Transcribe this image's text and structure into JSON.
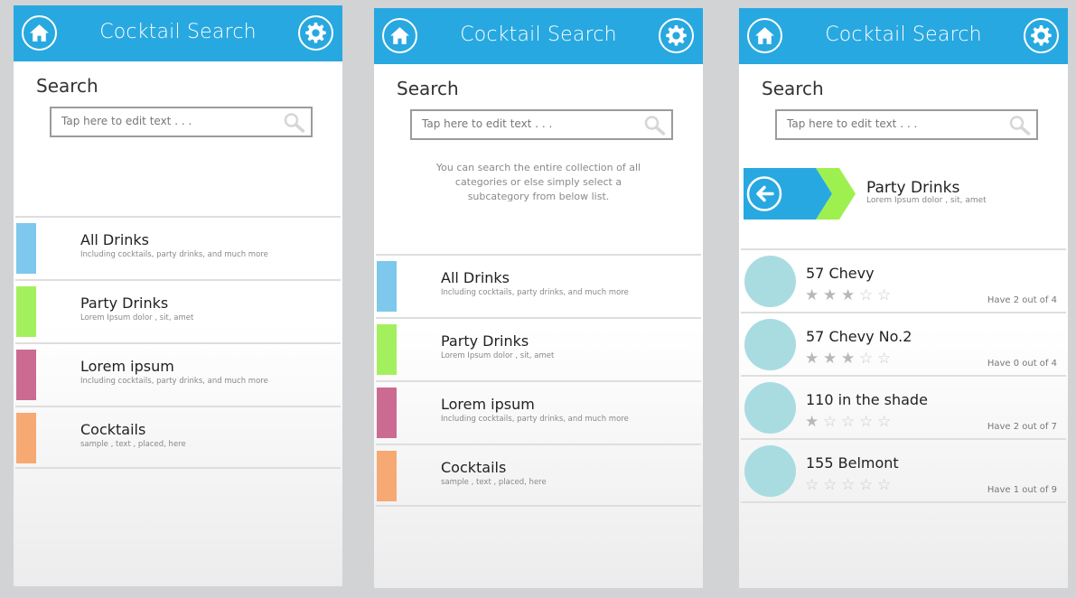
{
  "colors": {
    "bar": "#28a8e0",
    "avatar": "#a9dce1",
    "back_green": "#9ef04f"
  },
  "screens": [
    {
      "title": "Cocktail Search",
      "search_label": "Search",
      "search_placeholder": "Tap here to edit text  . . .",
      "categories": [
        {
          "title": "All Drinks",
          "subtitle": "Including cocktails, party drinks, and much more",
          "color": "#7dc8ec"
        },
        {
          "title": "Party Drinks",
          "subtitle": "Lorem Ipsum dolor , sit, amet",
          "color": "#a3f05f"
        },
        {
          "title": "Lorem ipsum",
          "subtitle": "Including cocktails, party drinks, and much more",
          "color": "#cc6b92"
        },
        {
          "title": "Cocktails",
          "subtitle": "sample , text , placed, here",
          "color": "#f7a974"
        }
      ]
    },
    {
      "title": "Cocktail Search",
      "search_label": "Search",
      "search_placeholder": "Tap here to edit text  . . .",
      "info": "You can search the entire collection of all categories or else simply select a subcategory from below list.",
      "categories": [
        {
          "title": "All Drinks",
          "subtitle": "Including cocktails, party drinks, and much more",
          "color": "#7dc8ec"
        },
        {
          "title": "Party Drinks",
          "subtitle": "Lorem Ipsum dolor , sit, amet",
          "color": "#a3f05f"
        },
        {
          "title": "Lorem ipsum",
          "subtitle": "Including cocktails, party drinks, and much more",
          "color": "#cc6b92"
        },
        {
          "title": "Cocktails",
          "subtitle": "sample , text , placed, here",
          "color": "#f7a974"
        }
      ]
    },
    {
      "title": "Cocktail Search",
      "search_label": "Search",
      "search_placeholder": "Tap here to edit text  . . .",
      "banner": {
        "title": "Party Drinks",
        "subtitle": "Lorem Ipsum dolor , sit, amet"
      },
      "drinks": [
        {
          "name": "57 Chevy",
          "rating": 3,
          "have": "Have  2 out of 4"
        },
        {
          "name": "57 Chevy No.2",
          "rating": 3,
          "have": "Have  0 out of 4"
        },
        {
          "name": "110 in the shade",
          "rating": 1,
          "have": "Have  2 out of 7"
        },
        {
          "name": "155 Belmont",
          "rating": 0,
          "have": "Have  1 out of 9"
        }
      ]
    }
  ]
}
